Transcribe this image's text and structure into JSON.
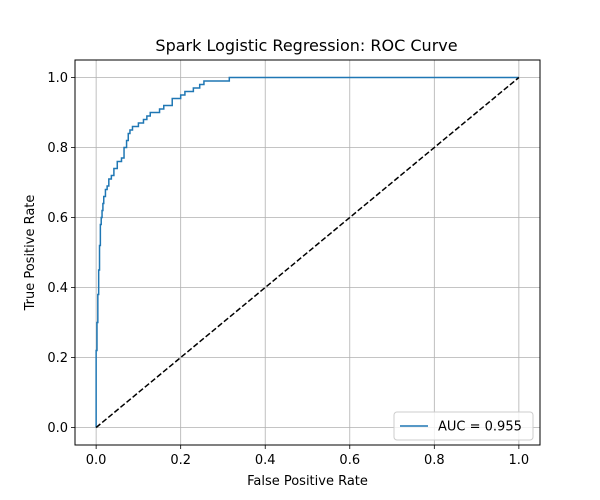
{
  "chart_data": {
    "type": "line",
    "title": "Spark Logistic Regression: ROC Curve",
    "xlabel": "False Positive Rate",
    "ylabel": "True Positive Rate",
    "xlim": [
      -0.05,
      1.05
    ],
    "ylim": [
      -0.05,
      1.05
    ],
    "xticks": [
      0.0,
      0.2,
      0.4,
      0.6,
      0.8,
      1.0
    ],
    "yticks": [
      0.0,
      0.2,
      0.4,
      0.6,
      0.8,
      1.0
    ],
    "xtick_labels": [
      "0.0",
      "0.2",
      "0.4",
      "0.6",
      "0.8",
      "1.0"
    ],
    "ytick_labels": [
      "0.0",
      "0.2",
      "0.4",
      "0.6",
      "0.8",
      "1.0"
    ],
    "grid": true,
    "legend": {
      "position": "lower-right",
      "entries": [
        "AUC = 0.955"
      ]
    },
    "series": [
      {
        "name": "AUC = 0.955",
        "style": "solid",
        "color": "#1f77b4",
        "x": [
          0.0,
          0.0,
          0.002,
          0.002,
          0.004,
          0.004,
          0.006,
          0.006,
          0.008,
          0.008,
          0.01,
          0.01,
          0.012,
          0.012,
          0.014,
          0.014,
          0.016,
          0.016,
          0.018,
          0.018,
          0.022,
          0.022,
          0.026,
          0.026,
          0.03,
          0.03,
          0.036,
          0.036,
          0.042,
          0.042,
          0.05,
          0.05,
          0.06,
          0.06,
          0.066,
          0.066,
          0.072,
          0.072,
          0.076,
          0.076,
          0.08,
          0.08,
          0.086,
          0.086,
          0.1,
          0.1,
          0.112,
          0.112,
          0.12,
          0.12,
          0.128,
          0.128,
          0.15,
          0.15,
          0.16,
          0.16,
          0.18,
          0.18,
          0.2,
          0.2,
          0.21,
          0.21,
          0.23,
          0.23,
          0.245,
          0.245,
          0.255,
          0.255,
          0.315,
          0.315,
          0.385,
          0.385,
          1.0
        ],
        "y": [
          0.0,
          0.22,
          0.22,
          0.3,
          0.3,
          0.38,
          0.38,
          0.45,
          0.45,
          0.52,
          0.52,
          0.58,
          0.58,
          0.6,
          0.6,
          0.62,
          0.62,
          0.64,
          0.64,
          0.66,
          0.66,
          0.68,
          0.68,
          0.69,
          0.69,
          0.71,
          0.71,
          0.72,
          0.72,
          0.74,
          0.74,
          0.76,
          0.76,
          0.77,
          0.77,
          0.8,
          0.8,
          0.82,
          0.82,
          0.84,
          0.84,
          0.85,
          0.85,
          0.86,
          0.86,
          0.87,
          0.87,
          0.88,
          0.88,
          0.89,
          0.89,
          0.9,
          0.9,
          0.91,
          0.91,
          0.92,
          0.92,
          0.94,
          0.94,
          0.95,
          0.95,
          0.96,
          0.96,
          0.97,
          0.97,
          0.98,
          0.98,
          0.99,
          0.99,
          1.0,
          1.0,
          1.0,
          1.0
        ]
      },
      {
        "name": "chance",
        "style": "dashed",
        "color": "#000000",
        "x": [
          0.0,
          1.0
        ],
        "y": [
          0.0,
          1.0
        ]
      }
    ]
  }
}
